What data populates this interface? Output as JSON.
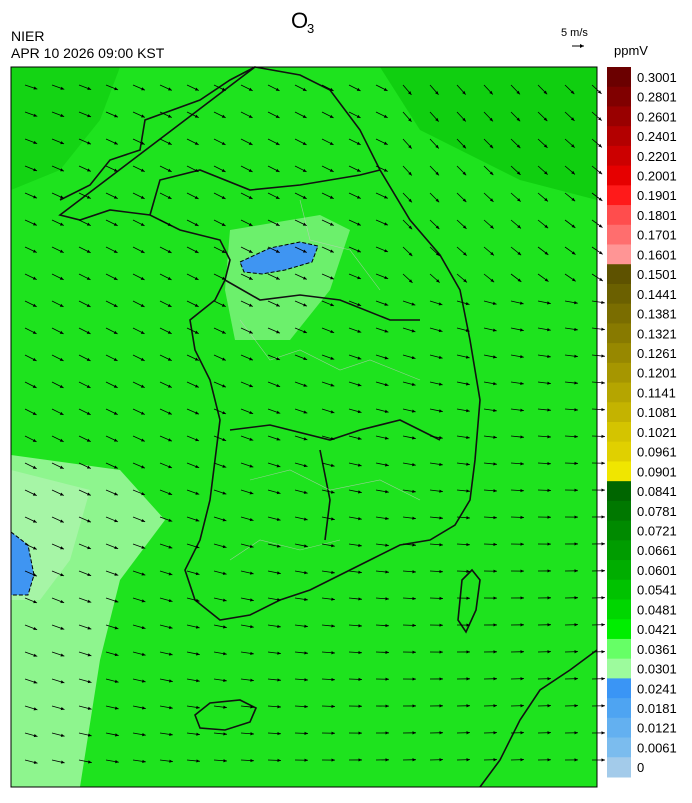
{
  "header": {
    "title": "O",
    "title_subscript": "3",
    "agency": "NIER",
    "datetime": "APR 10 2026 09:00 KST",
    "wind_reference": "5 m/s"
  },
  "colorbar": {
    "unit": "ppmV",
    "ticks": [
      0.3001,
      0.2801,
      0.2601,
      0.2401,
      0.2201,
      0.2001,
      0.1901,
      0.1801,
      0.1701,
      0.1601,
      0.1501,
      0.1441,
      0.1381,
      0.1321,
      0.1261,
      0.1201,
      0.1141,
      0.1081,
      0.1021,
      0.0961,
      0.0901,
      0.0841,
      0.0781,
      0.0721,
      0.0661,
      0.0601,
      0.0541,
      0.0481,
      0.0421,
      0.0361,
      0.0301,
      0.0241,
      0.0181,
      0.0121,
      0.0061,
      0
    ],
    "colors": [
      "#6b0000",
      "#800000",
      "#990000",
      "#b30000",
      "#cc0000",
      "#e60000",
      "#ff1a1a",
      "#ff4d4d",
      "#ff6e6e",
      "#ff9595",
      "#5e5200",
      "#6b6000",
      "#7a6d00",
      "#887a00",
      "#978800",
      "#a69600",
      "#b5a500",
      "#c4b300",
      "#d4c400",
      "#e0d000",
      "#f0e600",
      "#006600",
      "#007800",
      "#008a00",
      "#009c00",
      "#00ad00",
      "#00c200",
      "#00d600",
      "#00ee00",
      "#66ff66",
      "#9dfb9d",
      "#3a95f5",
      "#4ea4f2",
      "#63b0f0",
      "#7bbcee",
      "#a3cbea"
    ]
  }
}
